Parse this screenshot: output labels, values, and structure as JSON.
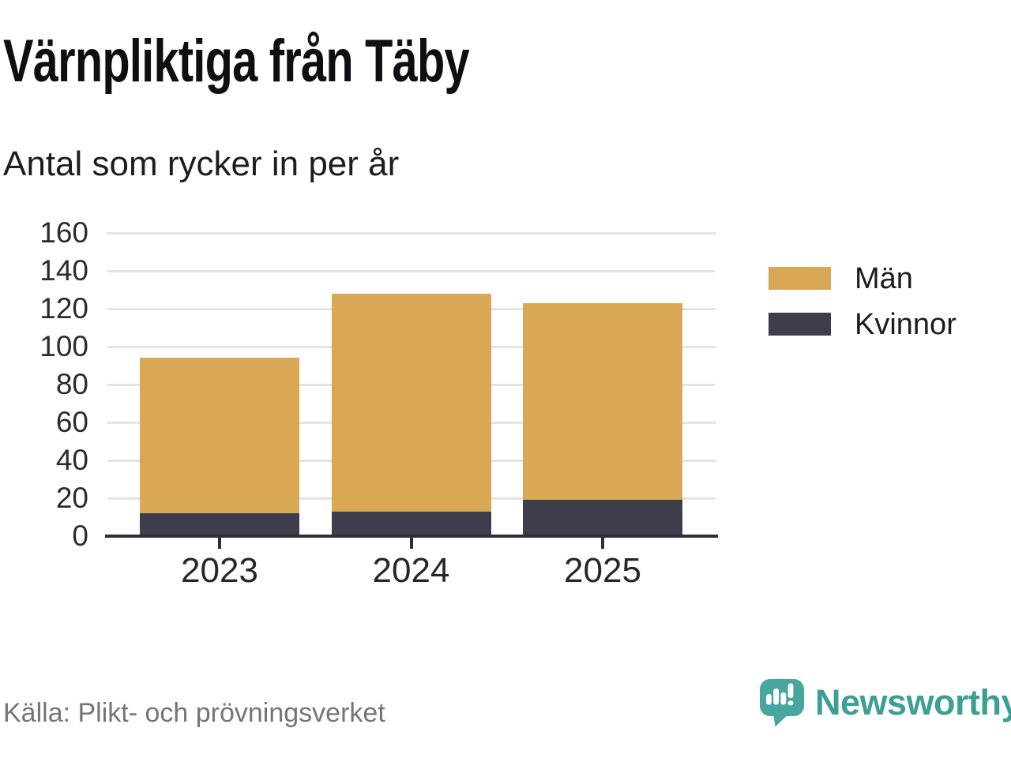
{
  "header": {
    "title": "Värnpliktiga från Täby",
    "subtitle": "Antal som rycker in per år"
  },
  "chart_data": {
    "type": "bar",
    "stacked": true,
    "title": "Värnpliktiga från Täby",
    "subtitle": "Antal som rycker in per år",
    "categories": [
      "2023",
      "2024",
      "2025"
    ],
    "series": [
      {
        "name": "Kvinnor",
        "color": "#3e3d4c",
        "values": [
          12,
          13,
          19
        ]
      },
      {
        "name": "Män",
        "color": "#d8a855",
        "values": [
          82,
          115,
          104
        ]
      }
    ],
    "stack_order": "bottom-to-top",
    "totals": [
      94,
      128,
      123
    ],
    "xlabel": "",
    "ylabel": "",
    "ylim": [
      0,
      160
    ],
    "ytick_step": 20,
    "yticks": [
      0,
      20,
      40,
      60,
      80,
      100,
      120,
      140,
      160
    ],
    "grid": true,
    "legend_position": "right"
  },
  "legend": {
    "items": [
      {
        "label": "Män",
        "color": "#d8a855"
      },
      {
        "label": "Kvinnor",
        "color": "#3e3d4c"
      }
    ]
  },
  "footer": {
    "source": "Källa: Plikt- och prövningsverket",
    "brand": "Newsworthy",
    "brand_text_color": "#3c9f95",
    "brand_icon_color": "#47a69d"
  }
}
